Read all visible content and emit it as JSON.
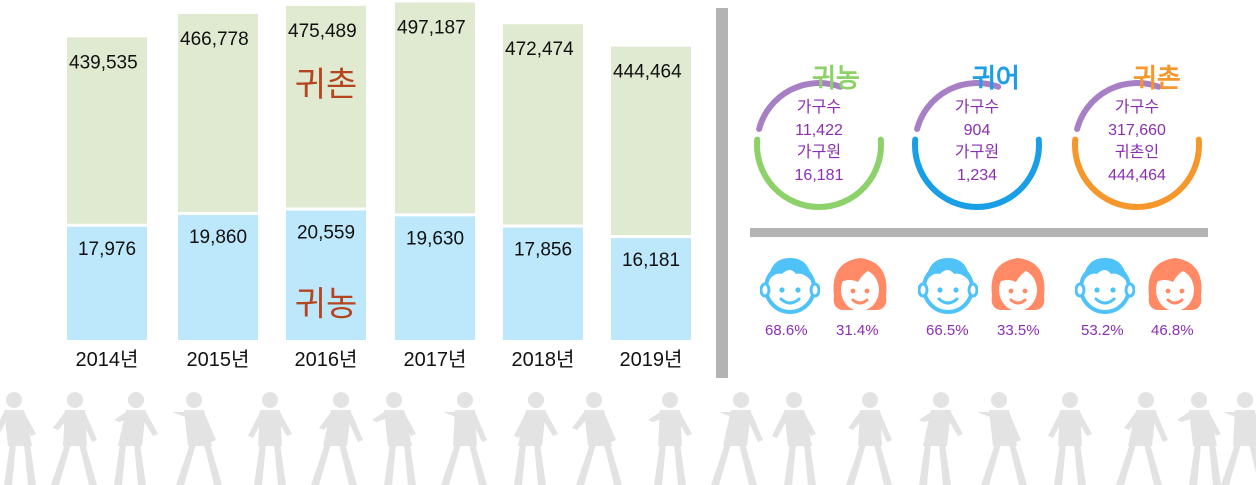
{
  "chart_data": {
    "type": "bar",
    "stacked": true,
    "categories": [
      "2014년",
      "2015년",
      "2016년",
      "2017년",
      "2018년",
      "2019년"
    ],
    "series": [
      {
        "name": "귀농",
        "values": [
          17976,
          19860,
          20559,
          19630,
          17856,
          16181
        ],
        "color": "#bde8fb"
      },
      {
        "name": "귀촌",
        "values": [
          439535,
          466778,
          475489,
          497187,
          472474,
          444464
        ],
        "color": "#dfead0"
      }
    ],
    "value_labels": {
      "bottom": [
        "17,976",
        "19,860",
        "20,559",
        "19,630",
        "17,856",
        "16,181"
      ],
      "top": [
        "439,535",
        "466,778",
        "475,489",
        "497,187",
        "472,474",
        "444,464"
      ]
    },
    "inline_labels": {
      "bottom_series": "귀농",
      "top_series": "귀촌",
      "on_category": "2016년"
    },
    "inline_label_color": "#b5451e",
    "grid": false,
    "legend": "none"
  },
  "summary": {
    "rings": [
      {
        "title": "귀농",
        "color": "#8dd16a",
        "lines": [
          "가구수",
          "11,422",
          "가구원",
          "16,181"
        ]
      },
      {
        "title": "귀어",
        "color": "#1a9fe6",
        "lines": [
          "가구수",
          "904",
          "가구원",
          "1,234"
        ]
      },
      {
        "title": "귀촌",
        "color": "#f6972c",
        "lines": [
          "가구수",
          "317,660",
          "귀촌인",
          "444,464"
        ]
      }
    ],
    "ring_accent_color": "#a77fc4",
    "text_color": "#8b2fb0",
    "gender": [
      {
        "male_pct": "68.6%",
        "female_pct": "31.4%"
      },
      {
        "male_pct": "66.5%",
        "female_pct": "33.5%"
      },
      {
        "male_pct": "53.2%",
        "female_pct": "46.8%"
      }
    ],
    "male_icon": "boy-face-icon",
    "female_icon": "girl-face-icon",
    "male_color": "#4fc3f7",
    "female_color": "#ff8a65"
  },
  "decor": {
    "icon": "people-silhouettes",
    "color": "#e3e3e3"
  }
}
